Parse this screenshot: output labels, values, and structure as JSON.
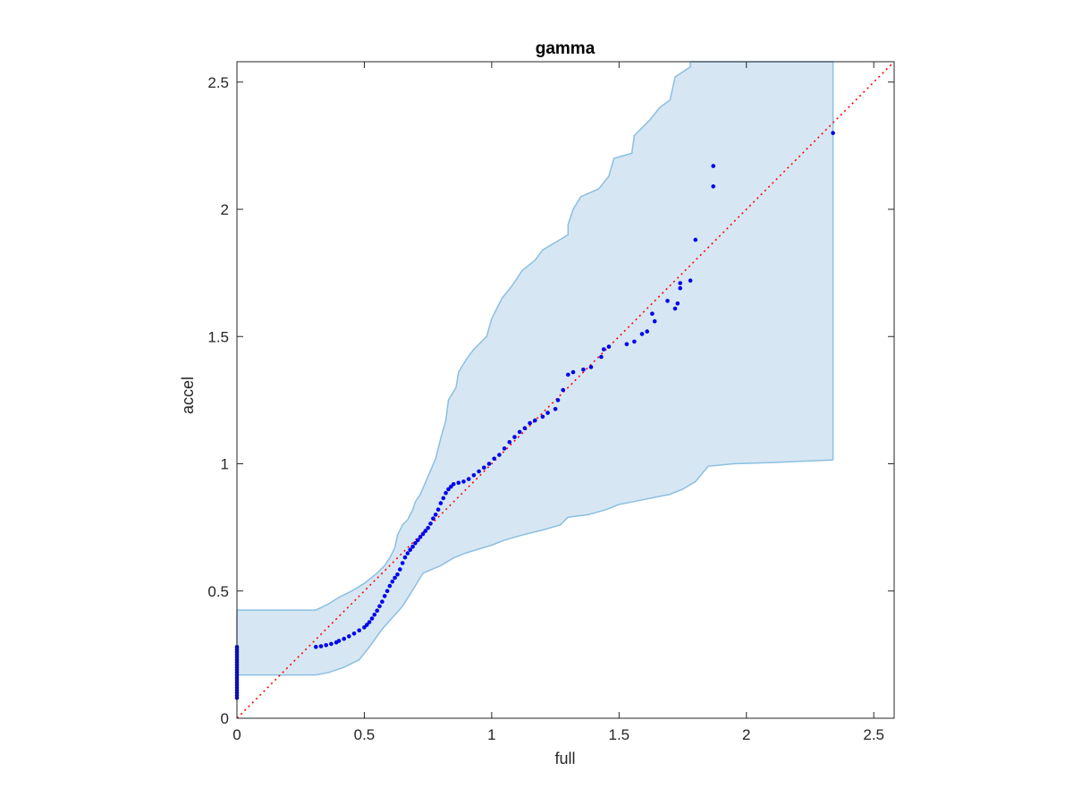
{
  "chart_data": {
    "type": "scatter",
    "title": "gamma",
    "xlabel": "full",
    "ylabel": "accel",
    "xlim": [
      0,
      2.58
    ],
    "ylim": [
      0,
      2.58
    ],
    "x_ticks": [
      0,
      0.5,
      1,
      1.5,
      2,
      2.5
    ],
    "y_ticks": [
      0,
      0.5,
      1,
      1.5,
      2,
      2.5
    ],
    "x_tick_labels": [
      "0",
      "0.5",
      "1",
      "1.5",
      "2",
      "2.5"
    ],
    "y_tick_labels": [
      "0",
      "0.5",
      "1",
      "1.5",
      "2",
      "2.5"
    ],
    "grid": false,
    "colors": {
      "points": "#0000ee",
      "reference_line": "#ff0000",
      "band_fill": "#d6e7f3",
      "band_edge": "#8cbfe0",
      "axes": "#262626"
    },
    "reference_line": {
      "style": "dotted",
      "from": [
        0,
        0
      ],
      "to": [
        2.58,
        2.58
      ]
    },
    "band": {
      "upper": [
        [
          0,
          0.425
        ],
        [
          0.31,
          0.425
        ],
        [
          0.36,
          0.45
        ],
        [
          0.4,
          0.475
        ],
        [
          0.45,
          0.5
        ],
        [
          0.5,
          0.53
        ],
        [
          0.55,
          0.57
        ],
        [
          0.58,
          0.6
        ],
        [
          0.6,
          0.63
        ],
        [
          0.62,
          0.67
        ],
        [
          0.63,
          0.72
        ],
        [
          0.65,
          0.76
        ],
        [
          0.67,
          0.78
        ],
        [
          0.69,
          0.82
        ],
        [
          0.7,
          0.85
        ],
        [
          0.72,
          0.88
        ],
        [
          0.75,
          0.95
        ],
        [
          0.78,
          1.02
        ],
        [
          0.8,
          1.1
        ],
        [
          0.82,
          1.17
        ],
        [
          0.83,
          1.25
        ],
        [
          0.86,
          1.3
        ],
        [
          0.87,
          1.36
        ],
        [
          0.9,
          1.41
        ],
        [
          0.93,
          1.45
        ],
        [
          0.98,
          1.5
        ],
        [
          1.0,
          1.57
        ],
        [
          1.04,
          1.65
        ],
        [
          1.08,
          1.7
        ],
        [
          1.12,
          1.76
        ],
        [
          1.17,
          1.8
        ],
        [
          1.2,
          1.84
        ],
        [
          1.25,
          1.87
        ],
        [
          1.3,
          1.9
        ],
        [
          1.3,
          1.94
        ],
        [
          1.32,
          2.0
        ],
        [
          1.35,
          2.05
        ],
        [
          1.42,
          2.08
        ],
        [
          1.46,
          2.13
        ],
        [
          1.48,
          2.2
        ],
        [
          1.55,
          2.22
        ],
        [
          1.56,
          2.29
        ],
        [
          1.62,
          2.35
        ],
        [
          1.66,
          2.4
        ],
        [
          1.7,
          2.43
        ],
        [
          1.72,
          2.52
        ],
        [
          1.78,
          2.56
        ],
        [
          1.78,
          2.58
        ],
        [
          2.34,
          2.58
        ]
      ],
      "lower": [
        [
          0,
          0.17
        ],
        [
          0.31,
          0.17
        ],
        [
          0.36,
          0.18
        ],
        [
          0.42,
          0.2
        ],
        [
          0.48,
          0.23
        ],
        [
          0.52,
          0.28
        ],
        [
          0.57,
          0.35
        ],
        [
          0.65,
          0.44
        ],
        [
          0.7,
          0.52
        ],
        [
          0.73,
          0.57
        ],
        [
          0.8,
          0.6
        ],
        [
          0.85,
          0.63
        ],
        [
          0.9,
          0.65
        ],
        [
          1.0,
          0.68
        ],
        [
          1.05,
          0.7
        ],
        [
          1.12,
          0.72
        ],
        [
          1.2,
          0.74
        ],
        [
          1.27,
          0.76
        ],
        [
          1.3,
          0.79
        ],
        [
          1.38,
          0.8
        ],
        [
          1.45,
          0.82
        ],
        [
          1.5,
          0.84
        ],
        [
          1.55,
          0.85
        ],
        [
          1.65,
          0.87
        ],
        [
          1.7,
          0.88
        ],
        [
          1.75,
          0.9
        ],
        [
          1.8,
          0.93
        ],
        [
          1.85,
          0.99
        ],
        [
          1.95,
          1.0
        ],
        [
          2.1,
          1.005
        ],
        [
          2.34,
          1.015
        ]
      ]
    },
    "points": [
      [
        0,
        0.08
      ],
      [
        0,
        0.09
      ],
      [
        0,
        0.1
      ],
      [
        0,
        0.11
      ],
      [
        0,
        0.12
      ],
      [
        0,
        0.13
      ],
      [
        0,
        0.14
      ],
      [
        0,
        0.15
      ],
      [
        0,
        0.16
      ],
      [
        0,
        0.17
      ],
      [
        0,
        0.18
      ],
      [
        0,
        0.19
      ],
      [
        0,
        0.2
      ],
      [
        0,
        0.21
      ],
      [
        0,
        0.22
      ],
      [
        0,
        0.23
      ],
      [
        0,
        0.24
      ],
      [
        0,
        0.25
      ],
      [
        0,
        0.26
      ],
      [
        0,
        0.27
      ],
      [
        0,
        0.28
      ],
      [
        0.31,
        0.28
      ],
      [
        0.33,
        0.283
      ],
      [
        0.35,
        0.287
      ],
      [
        0.37,
        0.292
      ],
      [
        0.39,
        0.298
      ],
      [
        0.4,
        0.304
      ],
      [
        0.42,
        0.312
      ],
      [
        0.44,
        0.322
      ],
      [
        0.46,
        0.333
      ],
      [
        0.48,
        0.345
      ],
      [
        0.5,
        0.357
      ],
      [
        0.51,
        0.367
      ],
      [
        0.52,
        0.378
      ],
      [
        0.53,
        0.392
      ],
      [
        0.54,
        0.407
      ],
      [
        0.55,
        0.423
      ],
      [
        0.56,
        0.44
      ],
      [
        0.57,
        0.458
      ],
      [
        0.58,
        0.48
      ],
      [
        0.59,
        0.5
      ],
      [
        0.6,
        0.52
      ],
      [
        0.61,
        0.537
      ],
      [
        0.62,
        0.552
      ],
      [
        0.63,
        0.565
      ],
      [
        0.64,
        0.585
      ],
      [
        0.65,
        0.61
      ],
      [
        0.66,
        0.632
      ],
      [
        0.67,
        0.648
      ],
      [
        0.68,
        0.662
      ],
      [
        0.69,
        0.674
      ],
      [
        0.7,
        0.688
      ],
      [
        0.71,
        0.7
      ],
      [
        0.72,
        0.712
      ],
      [
        0.73,
        0.724
      ],
      [
        0.74,
        0.736
      ],
      [
        0.75,
        0.748
      ],
      [
        0.76,
        0.765
      ],
      [
        0.77,
        0.785
      ],
      [
        0.78,
        0.8
      ],
      [
        0.79,
        0.82
      ],
      [
        0.8,
        0.845
      ],
      [
        0.81,
        0.865
      ],
      [
        0.82,
        0.885
      ],
      [
        0.83,
        0.9
      ],
      [
        0.84,
        0.91
      ],
      [
        0.85,
        0.92
      ],
      [
        0.87,
        0.925
      ],
      [
        0.89,
        0.93
      ],
      [
        0.91,
        0.94
      ],
      [
        0.93,
        0.955
      ],
      [
        0.95,
        0.97
      ],
      [
        0.97,
        0.985
      ],
      [
        0.99,
        1.0
      ],
      [
        1.01,
        1.02
      ],
      [
        1.03,
        1.035
      ],
      [
        1.05,
        1.06
      ],
      [
        1.07,
        1.085
      ],
      [
        1.09,
        1.105
      ],
      [
        1.11,
        1.125
      ],
      [
        1.13,
        1.14
      ],
      [
        1.15,
        1.16
      ],
      [
        1.17,
        1.17
      ],
      [
        1.2,
        1.185
      ],
      [
        1.22,
        1.2
      ],
      [
        1.25,
        1.215
      ],
      [
        1.26,
        1.25
      ],
      [
        1.28,
        1.29
      ],
      [
        1.3,
        1.35
      ],
      [
        1.32,
        1.36
      ],
      [
        1.36,
        1.37
      ],
      [
        1.39,
        1.38
      ],
      [
        1.43,
        1.42
      ],
      [
        1.44,
        1.45
      ],
      [
        1.46,
        1.46
      ],
      [
        1.53,
        1.47
      ],
      [
        1.56,
        1.48
      ],
      [
        1.59,
        1.51
      ],
      [
        1.61,
        1.52
      ],
      [
        1.63,
        1.59
      ],
      [
        1.64,
        1.56
      ],
      [
        1.69,
        1.64
      ],
      [
        1.72,
        1.61
      ],
      [
        1.73,
        1.63
      ],
      [
        1.74,
        1.69
      ],
      [
        1.74,
        1.71
      ],
      [
        1.78,
        1.72
      ],
      [
        1.8,
        1.88
      ],
      [
        1.87,
        2.09
      ],
      [
        1.87,
        2.17
      ],
      [
        2.34,
        2.3
      ]
    ]
  }
}
